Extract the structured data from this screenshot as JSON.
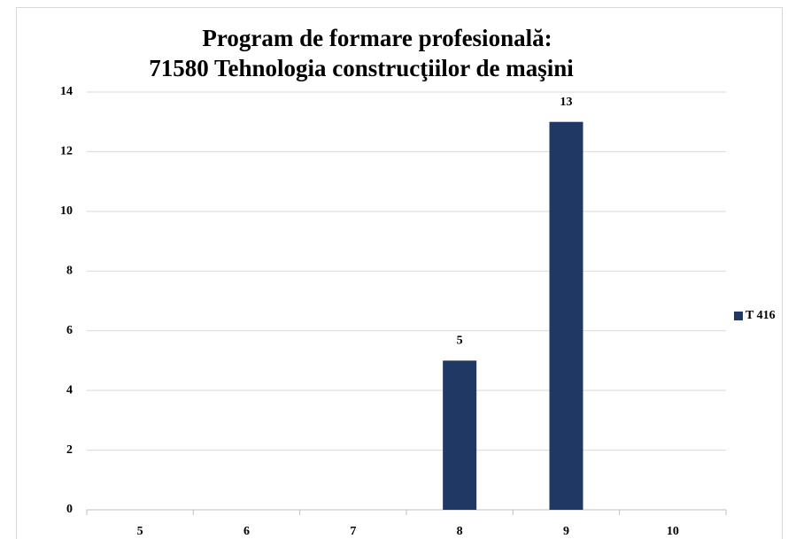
{
  "chart_data": {
    "type": "bar",
    "title": [
      "Program de formare profesională:",
      "71580 Tehnologia construcţiilor de maşini"
    ],
    "categories": [
      "5",
      "6",
      "7",
      "8",
      "9",
      "10"
    ],
    "series": [
      {
        "name": "T 416",
        "color": "#1f3864",
        "values": [
          null,
          null,
          null,
          5,
          13,
          null
        ]
      }
    ],
    "ylim": [
      0,
      14
    ],
    "yticks": [
      0,
      2,
      4,
      6,
      8,
      10,
      12,
      14
    ],
    "grid": true,
    "legend": "right"
  }
}
